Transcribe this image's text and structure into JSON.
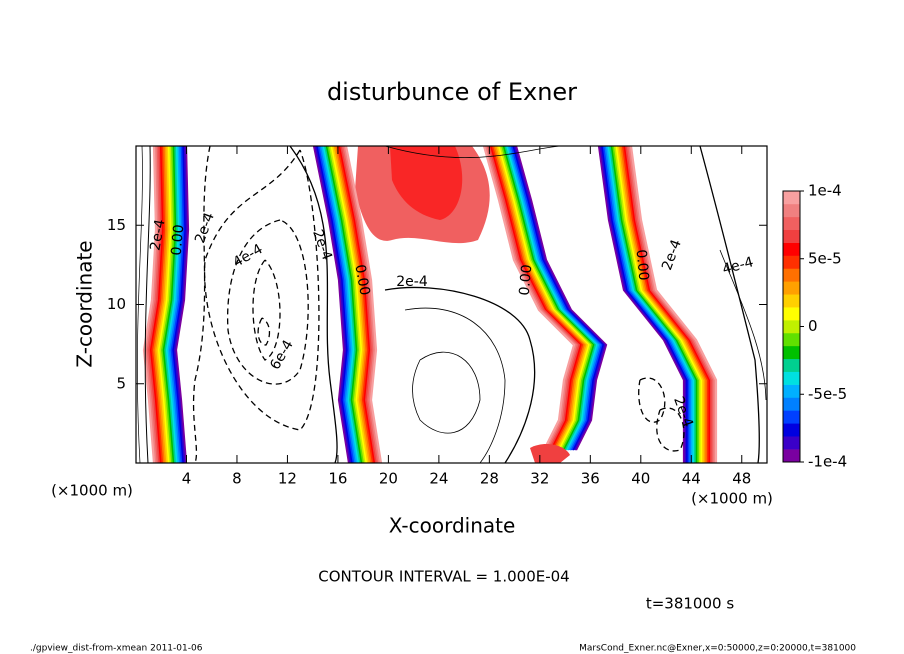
{
  "chart_data": {
    "type": "contour",
    "title": "disturbunce of Exner",
    "xlabel": "X-coordinate",
    "ylabel": "Z-coordinate",
    "x_unit": "(×1000 m)",
    "y_unit": "(×1000 m)",
    "xlim": [
      0,
      50
    ],
    "ylim": [
      0,
      20
    ],
    "xticks": [
      4,
      8,
      12,
      16,
      20,
      24,
      28,
      32,
      36,
      40,
      44,
      48
    ],
    "yticks": [
      5,
      10,
      15
    ],
    "colorbar_lim": [
      -0.0001,
      0.0001
    ],
    "colorbar_ticks": [
      {
        "value": 0.0001,
        "label": "1e-4"
      },
      {
        "value": 5e-05,
        "label": "5e-5"
      },
      0,
      {
        "value": -5e-05,
        "label": "-5e-5"
      },
      {
        "value": -0.0001,
        "label": "-1e-4"
      }
    ],
    "colormap": [
      "#7a00a0",
      "#3a00c8",
      "#0000e0",
      "#0040ff",
      "#0080ff",
      "#00b0ff",
      "#00e0e0",
      "#00d090",
      "#00c000",
      "#60e000",
      "#c0f000",
      "#ffff00",
      "#ffd000",
      "#ffa000",
      "#ff7000",
      "#ff3000",
      "#ff0000",
      "#f04040",
      "#f06060",
      "#f08080",
      "#f8a0a0"
    ],
    "contour_labels": [
      "2e-4",
      "0.00",
      "2e-4",
      "4e-4",
      "6e-4",
      "2e-4",
      "0.00",
      "2e-4",
      "0.00",
      "0.00",
      "2e-4",
      "4e-4",
      "2e-4"
    ],
    "contour_interval": "CONTOUR INTERVAL = 1.000E-04",
    "time": "t=381000 s",
    "footer_left": "./gpview_dist-from-xmean  2011-01-06",
    "footer_right": "MarsCond_Exner.nc@Exner,x=0:50000,z=0:20000,t=381000"
  }
}
